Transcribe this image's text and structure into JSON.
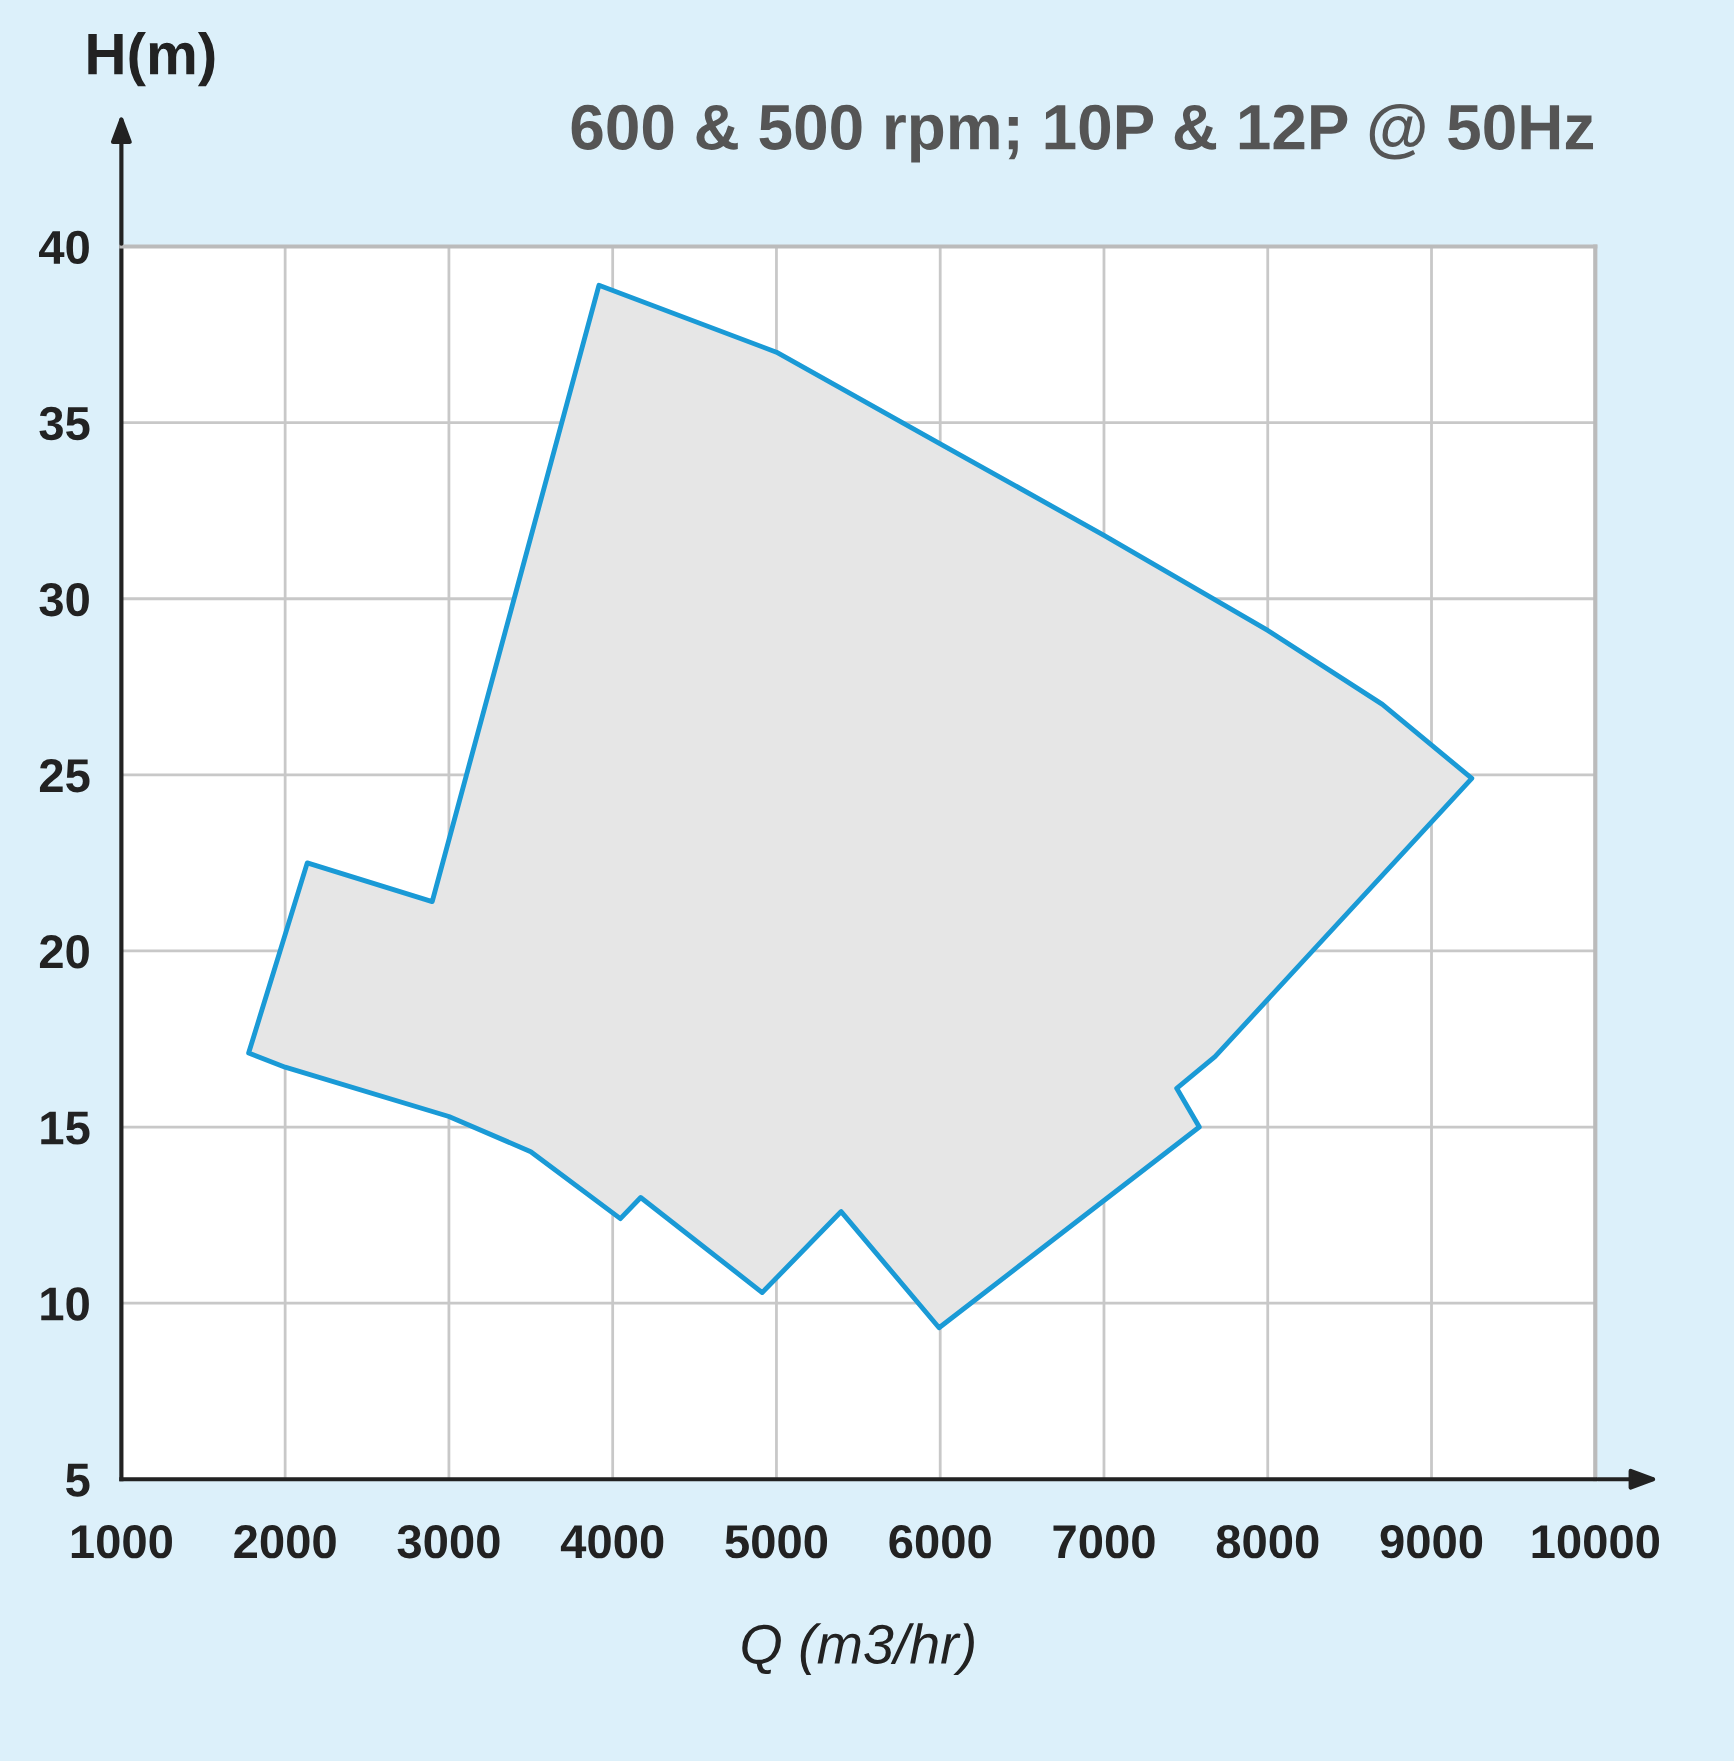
{
  "chart_data": {
    "type": "area",
    "title": "600 & 500 rpm; 10P & 12P @ 50Hz",
    "xlabel": "Q (m3/hr)",
    "ylabel": "H(m)",
    "xlim": [
      1000,
      10000
    ],
    "ylim": [
      5,
      40
    ],
    "xticks": [
      1000,
      2000,
      3000,
      4000,
      5000,
      6000,
      7000,
      8000,
      9000,
      10000
    ],
    "yticks": [
      5,
      10,
      15,
      20,
      25,
      30,
      35,
      40
    ],
    "grid": true,
    "legend": false,
    "series": [
      {
        "color": "#1a9ad6",
        "x": [
          1777,
          2135,
          2898,
          3916,
          5000,
          6000,
          7000,
          8000,
          8700,
          9246,
          7678,
          7444,
          7582,
          5993,
          5395,
          4913,
          4171,
          4047,
          3500,
          3000,
          2000,
          1777
        ],
        "values": [
          17.1,
          22.5,
          21.4,
          38.9,
          37.0,
          34.4,
          31.8,
          29.1,
          27.0,
          24.9,
          17.0,
          16.1,
          15.0,
          9.3,
          12.6,
          10.3,
          13.0,
          12.4,
          14.3,
          15.3,
          16.7,
          17.1
        ]
      }
    ]
  }
}
